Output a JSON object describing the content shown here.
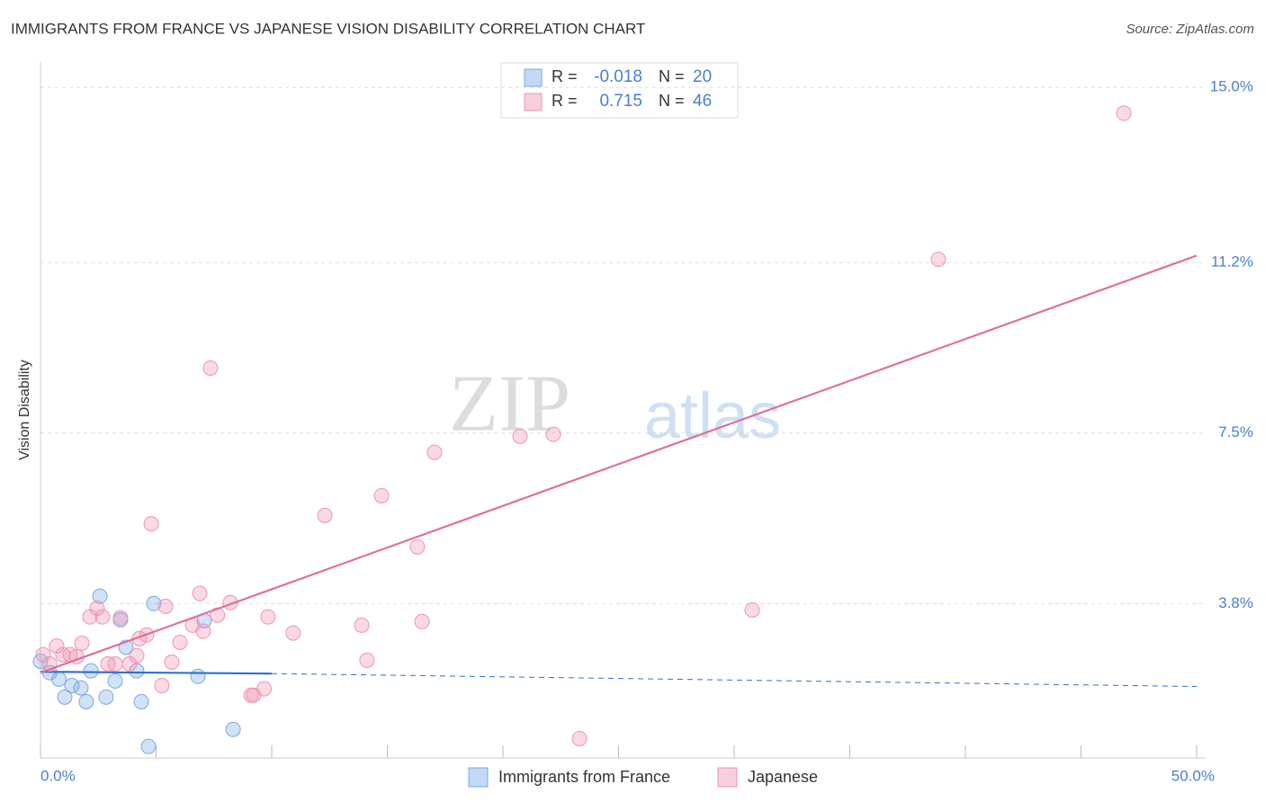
{
  "chart_data": {
    "type": "scatter",
    "title": "IMMIGRANTS FROM FRANCE VS JAPANESE VISION DISABILITY CORRELATION CHART",
    "source": "Source: ZipAtlas.com",
    "y_label": "Vision Disability",
    "watermark": [
      "ZIP",
      "atlas"
    ],
    "xlim": [
      0,
      50
    ],
    "ylim": [
      0.45,
      15.55
    ],
    "xticks": [
      {
        "value": 0,
        "label": "0.0%"
      },
      {
        "value": 50,
        "label": "50.0%"
      }
    ],
    "xticks_minor": [
      5,
      10,
      15,
      20,
      25,
      30,
      35,
      40,
      45
    ],
    "yticks": [
      {
        "value": 3.8,
        "label": "3.8%"
      },
      {
        "value": 7.5,
        "label": "7.5%"
      },
      {
        "value": 11.2,
        "label": "11.2%"
      },
      {
        "value": 15.0,
        "label": "15.0%"
      }
    ],
    "grid": true,
    "stat_labels": [
      "R =",
      "N ="
    ],
    "series": [
      {
        "name": "Immigrants from France",
        "color": "#7aa8e6",
        "line_color": "#2d6fcf",
        "r": -0.018,
        "n": 20,
        "x": [
          0,
          0.4,
          0.8,
          1.05,
          1.36,
          1.75,
          1.98,
          2.18,
          2.57,
          2.84,
          3.23,
          3.46,
          3.7,
          4.16,
          4.36,
          4.67,
          4.9,
          6.81,
          7.08,
          8.33
        ],
        "values": [
          2.55,
          2.3,
          2.16,
          1.77,
          2.02,
          1.97,
          1.67,
          2.34,
          3.96,
          1.77,
          2.12,
          3.45,
          2.85,
          2.34,
          1.67,
          0.7,
          3.8,
          2.22,
          3.43,
          1.07
        ],
        "trend_line": {
          "x": [
            0,
            10,
            50
          ],
          "y": [
            2.32,
            2.28,
            2.0
          ]
        }
      },
      {
        "name": "Japanese",
        "color": "#ee93b3",
        "line_color": "#e0709a",
        "r": 0.715,
        "n": 46,
        "x": [
          0.12,
          0.4,
          0.7,
          0.97,
          1.28,
          1.56,
          1.79,
          2.14,
          2.45,
          2.68,
          2.92,
          3.23,
          3.46,
          3.85,
          4.16,
          4.28,
          4.59,
          4.79,
          5.25,
          5.41,
          5.68,
          6.03,
          6.58,
          6.89,
          7.04,
          7.35,
          7.65,
          8.21,
          9.11,
          9.22,
          9.67,
          9.84,
          10.93,
          12.3,
          13.89,
          14.12,
          14.75,
          16.3,
          16.5,
          17.04,
          20.74,
          22.18,
          23.31,
          30.78,
          38.83,
          46.85
        ],
        "values": [
          2.69,
          2.49,
          2.88,
          2.69,
          2.69,
          2.65,
          2.94,
          3.51,
          3.7,
          3.51,
          2.49,
          2.49,
          3.49,
          2.49,
          2.67,
          3.04,
          3.12,
          5.53,
          2.02,
          3.74,
          2.53,
          2.96,
          3.33,
          4.02,
          3.2,
          8.91,
          3.55,
          3.82,
          1.81,
          1.81,
          1.95,
          3.51,
          3.16,
          5.71,
          3.33,
          2.57,
          6.14,
          5.03,
          3.41,
          7.08,
          7.43,
          7.47,
          0.87,
          3.66,
          11.27,
          14.44
        ],
        "trend_line": {
          "x": [
            0,
            50
          ],
          "y": [
            2.3,
            11.35
          ]
        }
      }
    ]
  }
}
